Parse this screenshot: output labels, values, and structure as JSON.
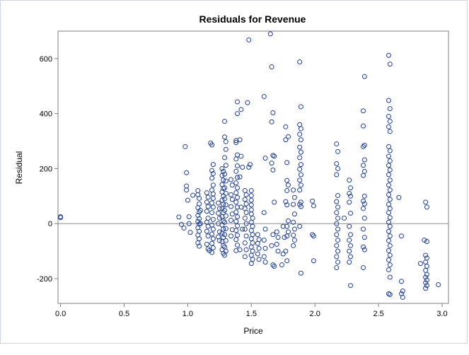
{
  "chart_data": {
    "type": "scatter",
    "title": "Residuals for Revenue",
    "xlabel": "Price",
    "ylabel": "Residual",
    "xlim": [
      -0.02,
      3.05
    ],
    "ylim": [
      -290,
      700
    ],
    "xticks": [
      0.0,
      0.5,
      1.0,
      1.5,
      2.0,
      2.5,
      3.0
    ],
    "xtick_labels": [
      "0.0",
      "0.5",
      "1.0",
      "1.5",
      "2.0",
      "2.5",
      "3.0"
    ],
    "yticks": [
      -200,
      0,
      200,
      400,
      600
    ],
    "ytick_labels": [
      "-200",
      "0",
      "200",
      "400",
      "600"
    ],
    "reference_line": {
      "axis": "y",
      "value": 0
    },
    "grid": false,
    "legend": "none",
    "marker": "open-circle",
    "colors": {
      "marker": "#1f3f99",
      "axis": "#7f7f7f",
      "refline": "#8c8c8c",
      "frame": "#d0d4e2",
      "text": "#000000"
    },
    "points": [
      [
        0.0,
        22
      ],
      [
        0.0,
        25
      ],
      [
        0.93,
        24
      ],
      [
        0.95,
        -3
      ],
      [
        0.97,
        -16
      ],
      [
        0.98,
        280
      ],
      [
        0.99,
        185
      ],
      [
        0.99,
        137
      ],
      [
        0.99,
        122
      ],
      [
        1.0,
        85
      ],
      [
        1.01,
        25
      ],
      [
        1.01,
        0
      ],
      [
        1.02,
        -32
      ],
      [
        1.04,
        103
      ],
      [
        1.08,
        120
      ],
      [
        1.08,
        105
      ],
      [
        1.09,
        92
      ],
      [
        1.09,
        72
      ],
      [
        1.08,
        58
      ],
      [
        1.09,
        42
      ],
      [
        1.08,
        30
      ],
      [
        1.09,
        18
      ],
      [
        1.08,
        8
      ],
      [
        1.09,
        -2
      ],
      [
        1.08,
        -15
      ],
      [
        1.09,
        -28
      ],
      [
        1.08,
        -42
      ],
      [
        1.09,
        -55
      ],
      [
        1.08,
        -70
      ],
      [
        1.09,
        -82
      ],
      [
        1.1,
        0
      ],
      [
        1.1,
        48
      ],
      [
        1.15,
        112
      ],
      [
        1.16,
        96
      ],
      [
        1.15,
        78
      ],
      [
        1.16,
        62
      ],
      [
        1.15,
        45
      ],
      [
        1.16,
        20
      ],
      [
        1.15,
        5
      ],
      [
        1.16,
        -10
      ],
      [
        1.15,
        -28
      ],
      [
        1.16,
        -45
      ],
      [
        1.15,
        -75
      ],
      [
        1.16,
        -92
      ],
      [
        1.17,
        -98
      ],
      [
        1.18,
        293
      ],
      [
        1.19,
        286
      ],
      [
        1.2,
        215
      ],
      [
        1.19,
        193
      ],
      [
        1.2,
        182
      ],
      [
        1.19,
        165
      ],
      [
        1.2,
        140
      ],
      [
        1.19,
        122
      ],
      [
        1.2,
        108
      ],
      [
        1.2,
        92
      ],
      [
        1.19,
        75
      ],
      [
        1.2,
        60
      ],
      [
        1.19,
        40
      ],
      [
        1.2,
        15
      ],
      [
        1.19,
        -5
      ],
      [
        1.2,
        -20
      ],
      [
        1.19,
        -38
      ],
      [
        1.2,
        -55
      ],
      [
        1.19,
        -72
      ],
      [
        1.2,
        -88
      ],
      [
        1.19,
        -105
      ],
      [
        1.24,
        75
      ],
      [
        1.25,
        55
      ],
      [
        1.24,
        38
      ],
      [
        1.25,
        20
      ],
      [
        1.24,
        0
      ],
      [
        1.25,
        -30
      ],
      [
        1.24,
        -48
      ],
      [
        1.25,
        -62
      ],
      [
        1.27,
        200
      ],
      [
        1.28,
        190
      ],
      [
        1.27,
        175
      ],
      [
        1.28,
        158
      ],
      [
        1.27,
        142
      ],
      [
        1.28,
        128
      ],
      [
        1.27,
        115
      ],
      [
        1.28,
        100
      ],
      [
        1.27,
        85
      ],
      [
        1.28,
        70
      ],
      [
        1.27,
        55
      ],
      [
        1.28,
        40
      ],
      [
        1.27,
        25
      ],
      [
        1.28,
        10
      ],
      [
        1.27,
        -5
      ],
      [
        1.28,
        -20
      ],
      [
        1.27,
        -35
      ],
      [
        1.28,
        -50
      ],
      [
        1.27,
        -65
      ],
      [
        1.28,
        -80
      ],
      [
        1.27,
        -95
      ],
      [
        1.28,
        -108
      ],
      [
        1.29,
        372
      ],
      [
        1.29,
        315
      ],
      [
        1.3,
        298
      ],
      [
        1.3,
        270
      ],
      [
        1.29,
        240
      ],
      [
        1.3,
        212
      ],
      [
        1.29,
        180
      ],
      [
        1.3,
        155
      ],
      [
        1.29,
        130
      ],
      [
        1.3,
        110
      ],
      [
        1.29,
        90
      ],
      [
        1.3,
        68
      ],
      [
        1.29,
        48
      ],
      [
        1.3,
        28
      ],
      [
        1.29,
        5
      ],
      [
        1.3,
        -18
      ],
      [
        1.29,
        -40
      ],
      [
        1.3,
        -62
      ],
      [
        1.29,
        -85
      ],
      [
        1.3,
        -100
      ],
      [
        1.29,
        -115
      ],
      [
        1.34,
        160
      ],
      [
        1.35,
        140
      ],
      [
        1.34,
        105
      ],
      [
        1.35,
        88
      ],
      [
        1.34,
        62
      ],
      [
        1.35,
        35
      ],
      [
        1.34,
        12
      ],
      [
        1.35,
        -22
      ],
      [
        1.34,
        -45
      ],
      [
        1.38,
        302
      ],
      [
        1.38,
        295
      ],
      [
        1.39,
        250
      ],
      [
        1.38,
        235
      ],
      [
        1.39,
        210
      ],
      [
        1.38,
        190
      ],
      [
        1.39,
        168
      ],
      [
        1.38,
        148
      ],
      [
        1.39,
        130
      ],
      [
        1.38,
        112
      ],
      [
        1.39,
        95
      ],
      [
        1.38,
        78
      ],
      [
        1.39,
        60
      ],
      [
        1.38,
        42
      ],
      [
        1.39,
        25
      ],
      [
        1.38,
        8
      ],
      [
        1.39,
        -8
      ],
      [
        1.38,
        -25
      ],
      [
        1.39,
        -42
      ],
      [
        1.38,
        -58
      ],
      [
        1.39,
        -78
      ],
      [
        1.38,
        -98
      ],
      [
        1.39,
        443
      ],
      [
        1.39,
        400
      ],
      [
        1.42,
        415
      ],
      [
        1.41,
        305
      ],
      [
        1.42,
        245
      ],
      [
        1.43,
        205
      ],
      [
        1.41,
        170
      ],
      [
        1.42,
        60
      ],
      [
        1.43,
        -20
      ],
      [
        1.41,
        -95
      ],
      [
        1.45,
        120
      ],
      [
        1.46,
        105
      ],
      [
        1.45,
        88
      ],
      [
        1.46,
        72
      ],
      [
        1.45,
        55
      ],
      [
        1.46,
        40
      ],
      [
        1.45,
        20
      ],
      [
        1.46,
        0
      ],
      [
        1.45,
        -20
      ],
      [
        1.46,
        -45
      ],
      [
        1.45,
        -70
      ],
      [
        1.46,
        -95
      ],
      [
        1.45,
        -120
      ],
      [
        1.48,
        668
      ],
      [
        1.47,
        440
      ],
      [
        1.49,
        215
      ],
      [
        1.48,
        205
      ],
      [
        1.5,
        120
      ],
      [
        1.5,
        102
      ],
      [
        1.5,
        85
      ],
      [
        1.5,
        68
      ],
      [
        1.5,
        50
      ],
      [
        1.5,
        35
      ],
      [
        1.51,
        20
      ],
      [
        1.5,
        5
      ],
      [
        1.51,
        -10
      ],
      [
        1.5,
        -25
      ],
      [
        1.51,
        -40
      ],
      [
        1.5,
        -55
      ],
      [
        1.51,
        -70
      ],
      [
        1.5,
        -85
      ],
      [
        1.51,
        -100
      ],
      [
        1.5,
        -115
      ],
      [
        1.51,
        -130
      ],
      [
        1.5,
        -145
      ],
      [
        1.55,
        -40
      ],
      [
        1.56,
        -58
      ],
      [
        1.55,
        -72
      ],
      [
        1.56,
        -90
      ],
      [
        1.55,
        -110
      ],
      [
        1.56,
        -130
      ],
      [
        1.6,
        462
      ],
      [
        1.61,
        238
      ],
      [
        1.6,
        40
      ],
      [
        1.61,
        -20
      ],
      [
        1.6,
        -60
      ],
      [
        1.61,
        -90
      ],
      [
        1.6,
        -120
      ],
      [
        1.61,
        -140
      ],
      [
        1.65,
        690
      ],
      [
        1.66,
        570
      ],
      [
        1.67,
        403
      ],
      [
        1.66,
        370
      ],
      [
        1.67,
        248
      ],
      [
        1.68,
        245
      ],
      [
        1.66,
        220
      ],
      [
        1.67,
        195
      ],
      [
        1.68,
        78
      ],
      [
        1.67,
        -40
      ],
      [
        1.66,
        -80
      ],
      [
        1.67,
        -150
      ],
      [
        1.68,
        -155
      ],
      [
        1.7,
        -30
      ],
      [
        1.71,
        -50
      ],
      [
        1.7,
        -75
      ],
      [
        1.71,
        -100
      ],
      [
        1.75,
        -10
      ],
      [
        1.76,
        -50
      ],
      [
        1.75,
        -110
      ],
      [
        1.74,
        -150
      ],
      [
        1.77,
        352
      ],
      [
        1.79,
        316
      ],
      [
        1.77,
        305
      ],
      [
        1.78,
        222
      ],
      [
        1.78,
        157
      ],
      [
        1.79,
        140
      ],
      [
        1.78,
        120
      ],
      [
        1.77,
        80
      ],
      [
        1.78,
        68
      ],
      [
        1.79,
        10
      ],
      [
        1.78,
        -10
      ],
      [
        1.79,
        -30
      ],
      [
        1.78,
        -45
      ],
      [
        1.77,
        -100
      ],
      [
        1.78,
        -135
      ],
      [
        1.83,
        122
      ],
      [
        1.84,
        95
      ],
      [
        1.83,
        70
      ],
      [
        1.84,
        35
      ],
      [
        1.83,
        5
      ],
      [
        1.84,
        -20
      ],
      [
        1.83,
        -42
      ],
      [
        1.84,
        -60
      ],
      [
        1.83,
        -80
      ],
      [
        1.88,
        588
      ],
      [
        1.89,
        425
      ],
      [
        1.88,
        360
      ],
      [
        1.89,
        345
      ],
      [
        1.88,
        325
      ],
      [
        1.89,
        305
      ],
      [
        1.88,
        278
      ],
      [
        1.89,
        260
      ],
      [
        1.88,
        240
      ],
      [
        1.89,
        215
      ],
      [
        1.88,
        198
      ],
      [
        1.89,
        178
      ],
      [
        1.88,
        158
      ],
      [
        1.89,
        140
      ],
      [
        1.88,
        122
      ],
      [
        1.89,
        78
      ],
      [
        1.88,
        70
      ],
      [
        1.89,
        62
      ],
      [
        1.88,
        -10
      ],
      [
        1.89,
        -180
      ],
      [
        1.98,
        82
      ],
      [
        1.99,
        65
      ],
      [
        1.98,
        -40
      ],
      [
        1.99,
        -45
      ],
      [
        1.99,
        -135
      ],
      [
        2.17,
        290
      ],
      [
        2.18,
        262
      ],
      [
        2.17,
        218
      ],
      [
        2.18,
        200
      ],
      [
        2.17,
        178
      ],
      [
        2.18,
        102
      ],
      [
        2.17,
        80
      ],
      [
        2.18,
        60
      ],
      [
        2.17,
        40
      ],
      [
        2.18,
        20
      ],
      [
        2.17,
        0
      ],
      [
        2.18,
        -20
      ],
      [
        2.17,
        -40
      ],
      [
        2.18,
        -60
      ],
      [
        2.17,
        -80
      ],
      [
        2.18,
        -100
      ],
      [
        2.17,
        -120
      ],
      [
        2.18,
        -140
      ],
      [
        2.17,
        -160
      ],
      [
        2.23,
        20
      ],
      [
        2.27,
        158
      ],
      [
        2.28,
        130
      ],
      [
        2.27,
        110
      ],
      [
        2.28,
        100
      ],
      [
        2.27,
        78
      ],
      [
        2.28,
        38
      ],
      [
        2.27,
        -10
      ],
      [
        2.28,
        -40
      ],
      [
        2.27,
        -60
      ],
      [
        2.28,
        -80
      ],
      [
        2.27,
        -100
      ],
      [
        2.28,
        -120
      ],
      [
        2.27,
        -140
      ],
      [
        2.28,
        -225
      ],
      [
        2.39,
        535
      ],
      [
        2.38,
        410
      ],
      [
        2.38,
        355
      ],
      [
        2.39,
        285
      ],
      [
        2.38,
        280
      ],
      [
        2.39,
        232
      ],
      [
        2.38,
        212
      ],
      [
        2.39,
        190
      ],
      [
        2.38,
        175
      ],
      [
        2.39,
        100
      ],
      [
        2.38,
        82
      ],
      [
        2.39,
        72
      ],
      [
        2.38,
        55
      ],
      [
        2.39,
        20
      ],
      [
        2.38,
        -20
      ],
      [
        2.39,
        -50
      ],
      [
        2.38,
        -85
      ],
      [
        2.39,
        -95
      ],
      [
        2.38,
        -160
      ],
      [
        2.58,
        612
      ],
      [
        2.59,
        580
      ],
      [
        2.58,
        448
      ],
      [
        2.59,
        418
      ],
      [
        2.58,
        390
      ],
      [
        2.59,
        372
      ],
      [
        2.58,
        352
      ],
      [
        2.59,
        335
      ],
      [
        2.58,
        280
      ],
      [
        2.59,
        265
      ],
      [
        2.58,
        245
      ],
      [
        2.59,
        228
      ],
      [
        2.58,
        212
      ],
      [
        2.59,
        195
      ],
      [
        2.58,
        178
      ],
      [
        2.59,
        158
      ],
      [
        2.58,
        140
      ],
      [
        2.59,
        122
      ],
      [
        2.58,
        105
      ],
      [
        2.59,
        88
      ],
      [
        2.58,
        70
      ],
      [
        2.59,
        55
      ],
      [
        2.58,
        40
      ],
      [
        2.59,
        22
      ],
      [
        2.58,
        5
      ],
      [
        2.59,
        -10
      ],
      [
        2.58,
        -28
      ],
      [
        2.59,
        -45
      ],
      [
        2.58,
        -62
      ],
      [
        2.59,
        -80
      ],
      [
        2.58,
        -98
      ],
      [
        2.59,
        -115
      ],
      [
        2.58,
        -132
      ],
      [
        2.59,
        -150
      ],
      [
        2.58,
        -168
      ],
      [
        2.59,
        -195
      ],
      [
        2.58,
        -255
      ],
      [
        2.59,
        -258
      ],
      [
        2.66,
        95
      ],
      [
        2.68,
        -45
      ],
      [
        2.68,
        -210
      ],
      [
        2.69,
        -245
      ],
      [
        2.68,
        -255
      ],
      [
        2.69,
        -268
      ],
      [
        2.83,
        -145
      ],
      [
        2.86,
        -60
      ],
      [
        2.88,
        -65
      ],
      [
        2.87,
        78
      ],
      [
        2.88,
        60
      ],
      [
        2.87,
        -115
      ],
      [
        2.88,
        -125
      ],
      [
        2.87,
        -140
      ],
      [
        2.88,
        -155
      ],
      [
        2.87,
        -170
      ],
      [
        2.88,
        -185
      ],
      [
        2.87,
        -195
      ],
      [
        2.88,
        -205
      ],
      [
        2.87,
        -215
      ],
      [
        2.88,
        -225
      ],
      [
        2.87,
        -235
      ],
      [
        2.97,
        -222
      ]
    ]
  }
}
